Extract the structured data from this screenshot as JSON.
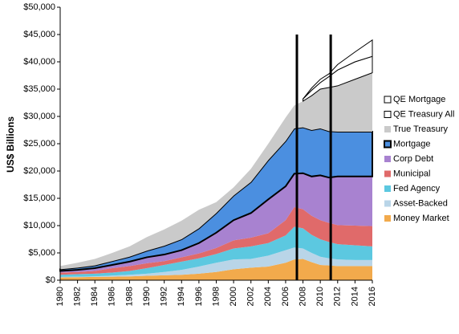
{
  "chart_data": {
    "type": "stacked_area",
    "y_label": "US$ Billions",
    "x": [
      1980,
      1982,
      1984,
      1986,
      1988,
      1990,
      1992,
      1994,
      1996,
      1998,
      2000,
      2002,
      2004,
      2006,
      2007,
      2008,
      2009,
      2010,
      2011,
      2012,
      2014,
      2016
    ],
    "series": [
      {
        "name": "Money Market",
        "color": "#f2aa4c",
        "values": [
          500,
          550,
          600,
          650,
          700,
          800,
          900,
          1000,
          1200,
          1500,
          2000,
          2300,
          2500,
          3200,
          3800,
          3900,
          3300,
          2800,
          2700,
          2600,
          2600,
          2600
        ]
      },
      {
        "name": "Asset-Backed",
        "color": "#b9d5e8",
        "values": [
          100,
          100,
          100,
          200,
          300,
          400,
          600,
          900,
          1300,
          1700,
          1800,
          1600,
          2000,
          2300,
          2200,
          1900,
          1700,
          1500,
          1300,
          1200,
          1100,
          1100
        ]
      },
      {
        "name": "Fed Agency",
        "color": "#5cc8e0",
        "values": [
          400,
          450,
          500,
          550,
          700,
          1000,
          1300,
          1500,
          1500,
          1600,
          2000,
          2300,
          2300,
          2700,
          3800,
          3700,
          3300,
          3200,
          3000,
          2800,
          2700,
          2500
        ]
      },
      {
        "name": "Municipal",
        "color": "#e06a6a",
        "values": [
          400,
          400,
          500,
          800,
          900,
          900,
          700,
          800,
          900,
          1100,
          1500,
          1600,
          1800,
          2800,
          3600,
          3500,
          3500,
          3500,
          3500,
          3500,
          3600,
          3700
        ]
      },
      {
        "name": "Corp Debt",
        "color": "#a882d0",
        "values": [
          300,
          400,
          500,
          600,
          800,
          1100,
          1200,
          1300,
          1900,
          2800,
          3700,
          4500,
          6200,
          6200,
          6100,
          6600,
          7200,
          8200,
          8300,
          8900,
          9000,
          9100
        ]
      },
      {
        "name": "Mortgage",
        "color": "#4b8fe0",
        "stroke": "#000000",
        "values": [
          300,
          400,
          500,
          700,
          900,
          1200,
          1600,
          2000,
          2700,
          3600,
          4500,
          5700,
          7200,
          8300,
          8300,
          8400,
          8500,
          8600,
          8500,
          8200,
          8200,
          8200
        ]
      },
      {
        "name": "True Treasury",
        "color": "#cacaca",
        "values": [
          600,
          900,
          1200,
          1500,
          1900,
          2500,
          3000,
          3400,
          3400,
          2000,
          1500,
          2400,
          3000,
          4300,
          4200,
          4800,
          6300,
          7200,
          8000,
          8400,
          9600,
          10800
        ]
      },
      {
        "name": "QE Treasury All",
        "color": "#ffffff",
        "stroke": "#000000",
        "values": [
          null,
          null,
          null,
          null,
          null,
          null,
          null,
          null,
          null,
          null,
          null,
          null,
          null,
          null,
          null,
          400,
          1000,
          1200,
          2000,
          2900,
          3200,
          3000
        ]
      },
      {
        "name": "QE Mortgage",
        "color": "#ffffff",
        "stroke": "#000000",
        "values": [
          null,
          null,
          null,
          null,
          null,
          null,
          null,
          null,
          null,
          null,
          null,
          null,
          null,
          null,
          null,
          0,
          400,
          600,
          500,
          1000,
          1800,
          3000
        ]
      }
    ],
    "vlines": [
      2007.3,
      2011.2
    ],
    "xlim": [
      1980,
      2016
    ],
    "xticks": [
      1980,
      1982,
      1984,
      1986,
      1988,
      1990,
      1992,
      1994,
      1996,
      1998,
      2000,
      2002,
      2004,
      2006,
      2008,
      2010,
      2012,
      2014,
      2016
    ],
    "ylim": [
      0,
      50000
    ],
    "yticks": [
      {
        "value": 0,
        "label": "$0"
      },
      {
        "value": 5000,
        "label": "$5,000"
      },
      {
        "value": 10000,
        "label": "$10,000"
      },
      {
        "value": 15000,
        "label": "$15,000"
      },
      {
        "value": 20000,
        "label": "$20,000"
      },
      {
        "value": 25000,
        "label": "$25,000"
      },
      {
        "value": 30000,
        "label": "$30,000"
      },
      {
        "value": 35000,
        "label": "$35,000"
      },
      {
        "value": 40000,
        "label": "$40,000"
      },
      {
        "value": 45000,
        "label": "$45,000"
      },
      {
        "value": 50000,
        "label": "$50,000"
      }
    ],
    "legend": "right"
  }
}
